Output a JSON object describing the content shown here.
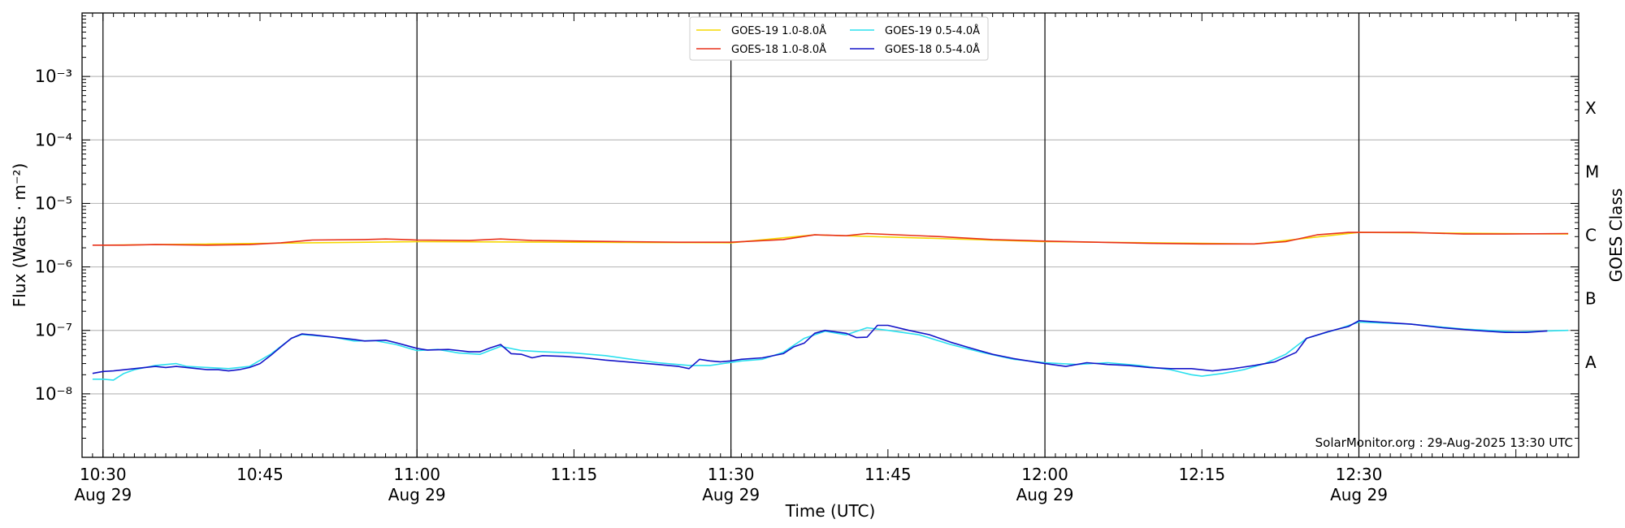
{
  "chart_data": {
    "type": "line",
    "xlabel": "Time (UTC)",
    "ylabel": "Flux (Watts · m⁻²)",
    "y2label": "GOES Class",
    "yscale": "log",
    "ylim": [
      1e-09,
      0.01
    ],
    "xlim": [
      "10:28",
      "12:51"
    ],
    "grid": "horizontal",
    "legend_position": "top-center",
    "footer": "SolarMonitor.org : 29-Aug-2025 13:30 UTC",
    "y_ticks": [
      {
        "value": 1e-08,
        "label": "10⁻⁸"
      },
      {
        "value": 1e-07,
        "label": "10⁻⁷"
      },
      {
        "value": 1e-06,
        "label": "10⁻⁶"
      },
      {
        "value": 1e-05,
        "label": "10⁻⁵"
      },
      {
        "value": 0.0001,
        "label": "10⁻⁴"
      },
      {
        "value": 0.001,
        "label": "10⁻³"
      }
    ],
    "x_ticks": [
      {
        "time": "10:30",
        "label": "10:30",
        "date": "Aug 29",
        "vline": true
      },
      {
        "time": "10:45",
        "label": "10:45",
        "date": "",
        "vline": false
      },
      {
        "time": "11:00",
        "label": "11:00",
        "date": "Aug 29",
        "vline": true
      },
      {
        "time": "11:15",
        "label": "11:15",
        "date": "",
        "vline": false
      },
      {
        "time": "11:30",
        "label": "11:30",
        "date": "Aug 29",
        "vline": true
      },
      {
        "time": "11:45",
        "label": "11:45",
        "date": "",
        "vline": false
      },
      {
        "time": "12:00",
        "label": "12:00",
        "date": "Aug 29",
        "vline": true
      },
      {
        "time": "12:15",
        "label": "12:15",
        "date": "",
        "vline": false
      },
      {
        "time": "12:30",
        "label": "12:30",
        "date": "Aug 29",
        "vline": true
      }
    ],
    "goes_classes": [
      {
        "label": "A",
        "value": 3.16e-08
      },
      {
        "label": "B",
        "value": 3.16e-07
      },
      {
        "label": "C",
        "value": 3.16e-06
      },
      {
        "label": "M",
        "value": 3.16e-05
      },
      {
        "label": "X",
        "value": 0.000316
      }
    ],
    "series": [
      {
        "name": "GOES-19 1.0-8.0Å",
        "color": "#f5d800",
        "points": [
          [
            "10:30",
            2.2e-06
          ],
          [
            "11:00",
            2.5e-06
          ],
          [
            "11:30",
            2.4e-06
          ],
          [
            "11:38",
            3.2e-06
          ],
          [
            "12:00",
            2.5e-06
          ],
          [
            "12:20",
            2.3e-06
          ],
          [
            "12:30",
            3.5e-06
          ],
          [
            "12:50",
            3.3e-06
          ]
        ]
      },
      {
        "name": "GOES-18 1.0-8.0Å",
        "color": "#e8311a",
        "points": [
          [
            "10:29",
            2.2e-06
          ],
          [
            "10:32",
            2.2e-06
          ],
          [
            "10:35",
            2.25e-06
          ],
          [
            "10:40",
            2.2e-06
          ],
          [
            "10:44",
            2.25e-06
          ],
          [
            "10:47",
            2.4e-06
          ],
          [
            "10:50",
            2.65e-06
          ],
          [
            "10:55",
            2.7e-06
          ],
          [
            "10:57",
            2.75e-06
          ],
          [
            "11:00",
            2.65e-06
          ],
          [
            "11:05",
            2.6e-06
          ],
          [
            "11:08",
            2.75e-06
          ],
          [
            "11:11",
            2.6e-06
          ],
          [
            "11:20",
            2.5e-06
          ],
          [
            "11:25",
            2.45e-06
          ],
          [
            "11:30",
            2.45e-06
          ],
          [
            "11:35",
            2.7e-06
          ],
          [
            "11:38",
            3.2e-06
          ],
          [
            "11:41",
            3.1e-06
          ],
          [
            "11:43",
            3.35e-06
          ],
          [
            "11:50",
            3e-06
          ],
          [
            "11:55",
            2.7e-06
          ],
          [
            "12:00",
            2.55e-06
          ],
          [
            "12:05",
            2.45e-06
          ],
          [
            "12:10",
            2.35e-06
          ],
          [
            "12:15",
            2.3e-06
          ],
          [
            "12:20",
            2.3e-06
          ],
          [
            "12:23",
            2.5e-06
          ],
          [
            "12:26",
            3.2e-06
          ],
          [
            "12:29",
            3.5e-06
          ],
          [
            "12:35",
            3.5e-06
          ],
          [
            "12:40",
            3.3e-06
          ],
          [
            "12:44",
            3.3e-06
          ],
          [
            "12:50",
            3.35e-06
          ]
        ]
      },
      {
        "name": "GOES-19 0.5-4.0Å",
        "color": "#2ce0ee",
        "points": [
          [
            "10:29",
            1.7e-08
          ],
          [
            "10:30",
            1.7e-08
          ],
          [
            "10:31",
            1.65e-08
          ],
          [
            "10:32",
            2.1e-08
          ],
          [
            "10:33",
            2.4e-08
          ],
          [
            "10:35",
            2.8e-08
          ],
          [
            "10:37",
            3e-08
          ],
          [
            "10:38",
            2.7e-08
          ],
          [
            "10:40",
            2.6e-08
          ],
          [
            "10:42",
            2.5e-08
          ],
          [
            "10:44",
            2.7e-08
          ],
          [
            "10:46",
            4.2e-08
          ],
          [
            "10:48",
            7.5e-08
          ],
          [
            "10:49",
            8.6e-08
          ],
          [
            "10:52",
            7.8e-08
          ],
          [
            "10:54",
            6.8e-08
          ],
          [
            "10:56",
            6.9e-08
          ],
          [
            "10:58",
            6e-08
          ],
          [
            "11:00",
            4.8e-08
          ],
          [
            "11:02",
            5e-08
          ],
          [
            "11:04",
            4.4e-08
          ],
          [
            "11:06",
            4.2e-08
          ],
          [
            "11:08",
            5.6e-08
          ],
          [
            "11:10",
            4.8e-08
          ],
          [
            "11:12",
            4.6e-08
          ],
          [
            "11:15",
            4.4e-08
          ],
          [
            "11:18",
            4e-08
          ],
          [
            "11:20",
            3.6e-08
          ],
          [
            "11:23",
            3.1e-08
          ],
          [
            "11:26",
            2.8e-08
          ],
          [
            "11:28",
            2.8e-08
          ],
          [
            "11:31",
            3.3e-08
          ],
          [
            "11:33",
            3.5e-08
          ],
          [
            "11:35",
            4.5e-08
          ],
          [
            "11:37",
            7.5e-08
          ],
          [
            "11:39",
            9.7e-08
          ],
          [
            "11:41",
            8.5e-08
          ],
          [
            "11:43",
            1.1e-07
          ],
          [
            "11:45",
            1e-07
          ],
          [
            "11:48",
            8.5e-08
          ],
          [
            "11:51",
            6e-08
          ],
          [
            "11:54",
            4.5e-08
          ],
          [
            "11:57",
            3.5e-08
          ],
          [
            "12:00",
            3.1e-08
          ],
          [
            "12:03",
            2.9e-08
          ],
          [
            "12:06",
            3.1e-08
          ],
          [
            "12:09",
            2.8e-08
          ],
          [
            "12:12",
            2.4e-08
          ],
          [
            "12:14",
            2e-08
          ],
          [
            "12:15",
            1.9e-08
          ],
          [
            "12:17",
            2.1e-08
          ],
          [
            "12:19",
            2.4e-08
          ],
          [
            "12:21",
            3e-08
          ],
          [
            "12:23",
            4.2e-08
          ],
          [
            "12:25",
            7.5e-08
          ],
          [
            "12:28",
            1.05e-07
          ],
          [
            "12:30",
            1.35e-07
          ],
          [
            "12:35",
            1.25e-07
          ],
          [
            "12:40",
            1.05e-07
          ],
          [
            "12:45",
            9.5e-08
          ],
          [
            "12:50",
            1e-07
          ]
        ]
      },
      {
        "name": "GOES-18 0.5-4.0Å",
        "color": "#1414c8",
        "points": [
          [
            "10:29",
            2.1e-08
          ],
          [
            "10:30",
            2.25e-08
          ],
          [
            "10:31",
            2.3e-08
          ],
          [
            "10:33",
            2.5e-08
          ],
          [
            "10:35",
            2.7e-08
          ],
          [
            "10:36",
            2.6e-08
          ],
          [
            "10:37",
            2.7e-08
          ],
          [
            "10:39",
            2.5e-08
          ],
          [
            "10:40",
            2.4e-08
          ],
          [
            "10:41",
            2.4e-08
          ],
          [
            "10:42",
            2.3e-08
          ],
          [
            "10:43",
            2.4e-08
          ],
          [
            "10:44",
            2.6e-08
          ],
          [
            "10:45",
            3e-08
          ],
          [
            "10:46",
            4e-08
          ],
          [
            "10:47",
            5.5e-08
          ],
          [
            "10:48",
            7.5e-08
          ],
          [
            "10:49",
            8.8e-08
          ],
          [
            "10:50",
            8.5e-08
          ],
          [
            "10:52",
            7.8e-08
          ],
          [
            "10:54",
            7.2e-08
          ],
          [
            "10:55",
            6.8e-08
          ],
          [
            "10:57",
            7e-08
          ],
          [
            "10:58",
            6.4e-08
          ],
          [
            "11:00",
            5.2e-08
          ],
          [
            "11:01",
            4.9e-08
          ],
          [
            "11:03",
            5e-08
          ],
          [
            "11:04",
            4.8e-08
          ],
          [
            "11:05",
            4.6e-08
          ],
          [
            "11:06",
            4.6e-08
          ],
          [
            "11:07",
            5.3e-08
          ],
          [
            "11:08",
            6e-08
          ],
          [
            "11:09",
            4.3e-08
          ],
          [
            "11:10",
            4.2e-08
          ],
          [
            "11:11",
            3.7e-08
          ],
          [
            "11:12",
            4e-08
          ],
          [
            "11:14",
            3.9e-08
          ],
          [
            "11:16",
            3.7e-08
          ],
          [
            "11:18",
            3.4e-08
          ],
          [
            "11:20",
            3.2e-08
          ],
          [
            "11:23",
            2.9e-08
          ],
          [
            "11:25",
            2.7e-08
          ],
          [
            "11:26",
            2.5e-08
          ],
          [
            "11:27",
            3.5e-08
          ],
          [
            "11:28",
            3.3e-08
          ],
          [
            "11:29",
            3.2e-08
          ],
          [
            "11:30",
            3.3e-08
          ],
          [
            "11:31",
            3.5e-08
          ],
          [
            "11:33",
            3.7e-08
          ],
          [
            "11:35",
            4.3e-08
          ],
          [
            "11:36",
            5.5e-08
          ],
          [
            "11:37",
            6.3e-08
          ],
          [
            "11:38",
            9e-08
          ],
          [
            "11:39",
            1e-07
          ],
          [
            "11:41",
            9e-08
          ],
          [
            "11:42",
            7.7e-08
          ],
          [
            "11:43",
            7.8e-08
          ],
          [
            "11:44",
            1.2e-07
          ],
          [
            "11:45",
            1.2e-07
          ],
          [
            "11:47",
            1e-07
          ],
          [
            "11:49",
            8.5e-08
          ],
          [
            "11:51",
            6.5e-08
          ],
          [
            "11:53",
            5.2e-08
          ],
          [
            "11:55",
            4.2e-08
          ],
          [
            "11:57",
            3.6e-08
          ],
          [
            "12:00",
            3e-08
          ],
          [
            "12:02",
            2.7e-08
          ],
          [
            "12:04",
            3.1e-08
          ],
          [
            "12:06",
            2.9e-08
          ],
          [
            "12:08",
            2.8e-08
          ],
          [
            "12:10",
            2.6e-08
          ],
          [
            "12:12",
            2.5e-08
          ],
          [
            "12:14",
            2.5e-08
          ],
          [
            "12:16",
            2.3e-08
          ],
          [
            "12:18",
            2.5e-08
          ],
          [
            "12:20",
            2.8e-08
          ],
          [
            "12:22",
            3.2e-08
          ],
          [
            "12:24",
            4.5e-08
          ],
          [
            "12:25",
            7.5e-08
          ],
          [
            "12:27",
            9.5e-08
          ],
          [
            "12:28",
            1.05e-07
          ],
          [
            "12:29",
            1.15e-07
          ],
          [
            "12:30",
            1.42e-07
          ],
          [
            "12:32",
            1.35e-07
          ],
          [
            "12:35",
            1.25e-07
          ],
          [
            "12:38",
            1.1e-07
          ],
          [
            "12:41",
            1e-07
          ],
          [
            "12:44",
            9.3e-08
          ],
          [
            "12:46",
            9.3e-08
          ],
          [
            "12:48",
            9.8e-08
          ]
        ]
      }
    ]
  }
}
